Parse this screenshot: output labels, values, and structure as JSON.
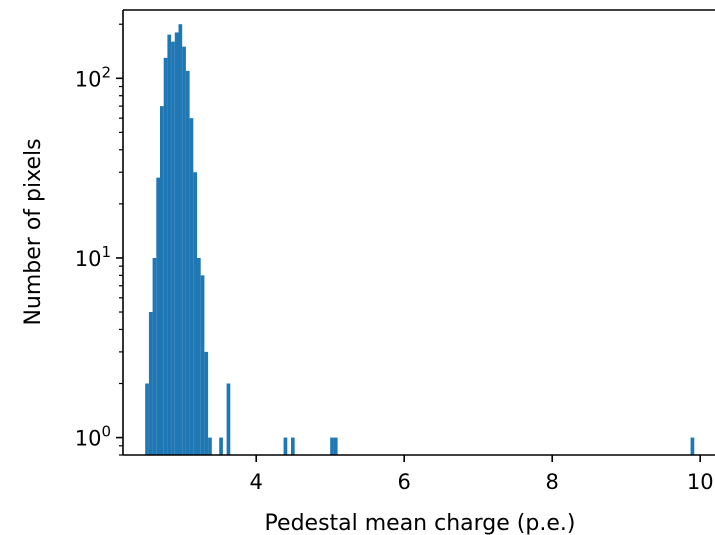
{
  "chart_data": {
    "type": "bar",
    "title": "",
    "xlabel": "Pedestal mean charge (p.e.)",
    "ylabel": "Number of pixels",
    "yscale": "log",
    "xlim": [
      2.2,
      10.2
    ],
    "ylim": [
      0.8,
      240
    ],
    "bin_width": 0.05,
    "x_ticks": [
      {
        "value": 4,
        "label": "4"
      },
      {
        "value": 6,
        "label": "6"
      },
      {
        "value": 8,
        "label": "8"
      },
      {
        "value": 10,
        "label": "10"
      }
    ],
    "y_ticks": [
      {
        "value": 1,
        "base": "10",
        "exp": "0"
      },
      {
        "value": 10,
        "base": "10",
        "exp": "1"
      },
      {
        "value": 100,
        "base": "10",
        "exp": "2"
      }
    ],
    "color": "#1f77b4",
    "grid": false,
    "bins": [
      {
        "x": 2.5,
        "count": 2
      },
      {
        "x": 2.55,
        "count": 5
      },
      {
        "x": 2.6,
        "count": 10
      },
      {
        "x": 2.65,
        "count": 28
      },
      {
        "x": 2.7,
        "count": 70
      },
      {
        "x": 2.75,
        "count": 130
      },
      {
        "x": 2.8,
        "count": 175
      },
      {
        "x": 2.85,
        "count": 160
      },
      {
        "x": 2.9,
        "count": 180
      },
      {
        "x": 2.95,
        "count": 200
      },
      {
        "x": 3.0,
        "count": 150
      },
      {
        "x": 3.05,
        "count": 110
      },
      {
        "x": 3.1,
        "count": 60
      },
      {
        "x": 3.15,
        "count": 30
      },
      {
        "x": 3.2,
        "count": 10
      },
      {
        "x": 3.25,
        "count": 8
      },
      {
        "x": 3.3,
        "count": 3
      },
      {
        "x": 3.35,
        "count": 1
      },
      {
        "x": 3.5,
        "count": 1
      },
      {
        "x": 3.6,
        "count": 2
      },
      {
        "x": 4.37,
        "count": 1
      },
      {
        "x": 4.47,
        "count": 1
      },
      {
        "x": 5.0,
        "count": 1
      },
      {
        "x": 5.05,
        "count": 1
      },
      {
        "x": 9.87,
        "count": 1
      }
    ]
  }
}
